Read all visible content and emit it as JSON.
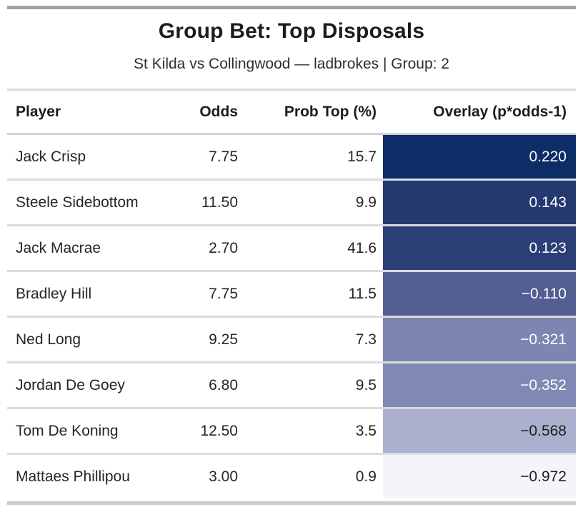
{
  "header": {
    "title": "Group Bet: Top Disposals",
    "subtitle": "St Kilda vs Collingwood — ladbrokes | Group: 2"
  },
  "table": {
    "columns": [
      "Player",
      "Odds",
      "Prob Top (%)",
      "Overlay (p*odds-1)"
    ],
    "rows": [
      {
        "player": "Jack Crisp",
        "odds": "7.75",
        "prob": "15.7",
        "overlay": "0.220",
        "bg": "#0d2d66",
        "fg": "#ffffff"
      },
      {
        "player": "Steele Sidebottom",
        "odds": "11.50",
        "prob": "9.9",
        "overlay": "0.143",
        "bg": "#24396f",
        "fg": "#ffffff"
      },
      {
        "player": "Jack Macrae",
        "odds": "2.70",
        "prob": "41.6",
        "overlay": "0.123",
        "bg": "#2a3f75",
        "fg": "#ffffff"
      },
      {
        "player": "Bradley Hill",
        "odds": "7.75",
        "prob": "11.5",
        "overlay": "−0.110",
        "bg": "#535f92",
        "fg": "#ffffff"
      },
      {
        "player": "Ned Long",
        "odds": "9.25",
        "prob": "7.3",
        "overlay": "−0.321",
        "bg": "#7c86b0",
        "fg": "#ffffff"
      },
      {
        "player": "Jordan De Goey",
        "odds": "6.80",
        "prob": "9.5",
        "overlay": "−0.352",
        "bg": "#8089b3",
        "fg": "#ffffff"
      },
      {
        "player": "Tom De Koning",
        "odds": "12.50",
        "prob": "3.5",
        "overlay": "−0.568",
        "bg": "#aab0cd",
        "fg": "#1f1f1f"
      },
      {
        "player": "Mattaes Phillipou",
        "odds": "3.00",
        "prob": "0.9",
        "overlay": "−0.972",
        "bg": "#f3f5fb",
        "fg": "#1f1f1f"
      }
    ]
  },
  "colors": {
    "top_rule": "#a1a1a1",
    "bottom_rule": "#cbcbcb",
    "row_separator": "#dcdcdc",
    "overlay_high": "#0d2d66",
    "overlay_low": "#f3f5fb"
  },
  "chart_data": {
    "type": "table",
    "title": "Group Bet: Top Disposals",
    "subtitle": "St Kilda vs Collingwood — ladbrokes | Group: 2",
    "columns": [
      "Player",
      "Odds",
      "Prob Top (%)",
      "Overlay (p*odds-1)"
    ],
    "rows": [
      [
        "Jack Crisp",
        7.75,
        15.7,
        0.22
      ],
      [
        "Steele Sidebottom",
        11.5,
        9.9,
        0.143
      ],
      [
        "Jack Macrae",
        2.7,
        41.6,
        0.123
      ],
      [
        "Bradley Hill",
        7.75,
        11.5,
        -0.11
      ],
      [
        "Ned Long",
        9.25,
        7.3,
        -0.321
      ],
      [
        "Jordan De Goey",
        6.8,
        9.5,
        -0.352
      ],
      [
        "Tom De Koning",
        12.5,
        3.5,
        -0.568
      ],
      [
        "Mattaes Phillipou",
        3.0,
        0.9,
        -0.972
      ]
    ],
    "layout": {
      "overlay_column_shading": "sequential blue colormap, darkest at highest overlay value, near-white at lowest",
      "numeric_columns_alignment": "right",
      "player_column_alignment": "left"
    }
  }
}
